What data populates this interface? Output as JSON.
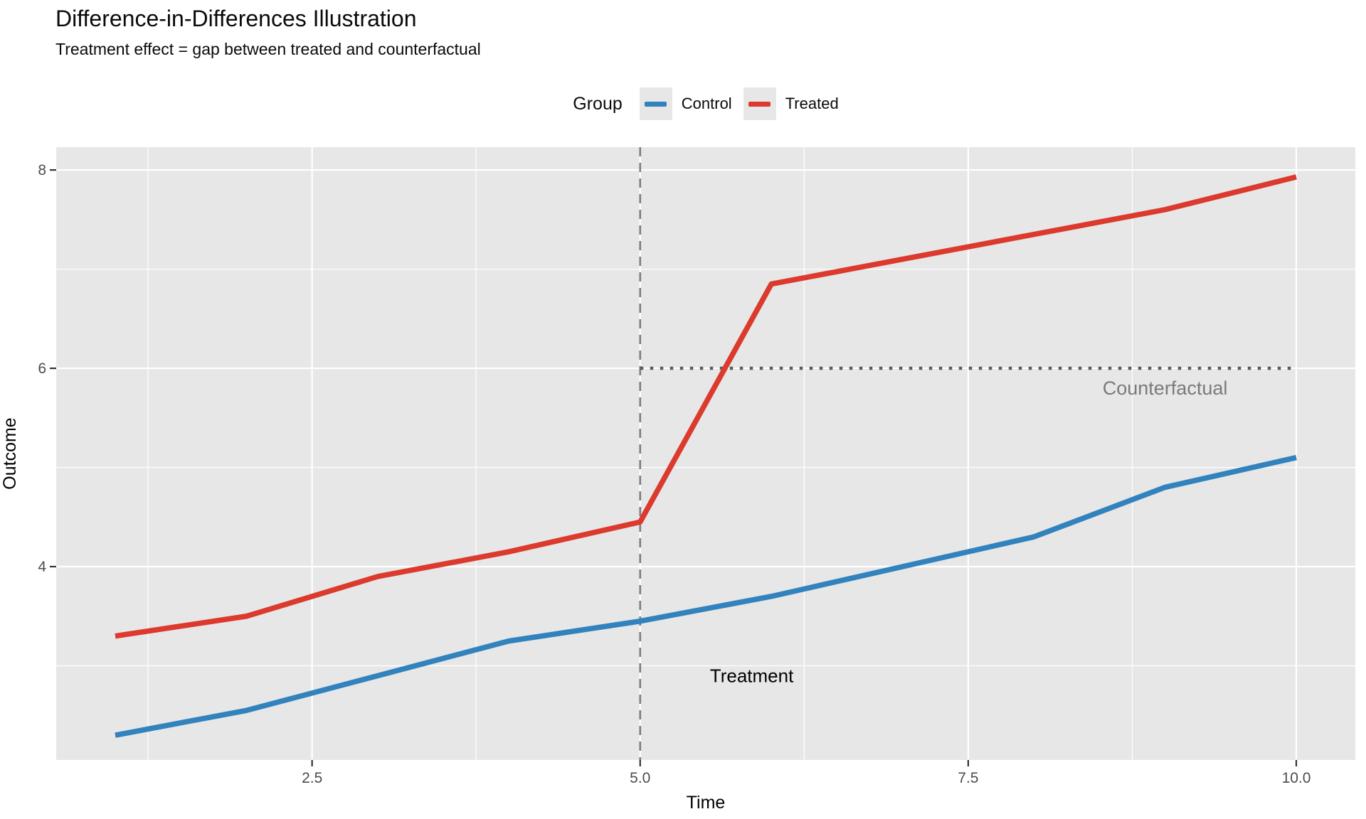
{
  "header": {
    "title": "Difference-in-Differences Illustration",
    "subtitle": "Treatment effect = gap between treated and counterfactual"
  },
  "legend": {
    "title": "Group",
    "key_bg": "#E7E7E7",
    "items": [
      {
        "label": "Control",
        "color": "#3182BD"
      },
      {
        "label": "Treated",
        "color": "#DB3A2D"
      }
    ]
  },
  "chart_data": {
    "type": "line",
    "title": "Difference-in-Differences Illustration",
    "subtitle": "Treatment effect = gap between treated and counterfactual",
    "xlabel": "Time",
    "ylabel": "Outcome",
    "x": [
      1,
      2,
      3,
      4,
      5,
      6,
      7,
      8,
      9,
      10
    ],
    "series": [
      {
        "name": "Control",
        "color": "#3182BD",
        "values": [
          2.3,
          2.55,
          2.9,
          3.25,
          3.45,
          3.7,
          4.0,
          4.3,
          4.8,
          5.1
        ]
      },
      {
        "name": "Treated",
        "color": "#DB3A2D",
        "values": [
          3.3,
          3.5,
          3.9,
          4.15,
          4.45,
          6.85,
          7.1,
          7.35,
          7.6,
          7.93
        ]
      }
    ],
    "reference_lines": {
      "treatment_time": {
        "x": 5,
        "style": "dashed",
        "color": "#7E7E7E"
      },
      "counterfactual": {
        "y": 6,
        "x_start": 5,
        "x_end": 10,
        "style": "dotted",
        "color": "#5C5C5C"
      }
    },
    "annotations": [
      {
        "text": "Treatment",
        "x": 5.85,
        "y": 2.9,
        "color": "#000000",
        "size": 26
      },
      {
        "text": "Counterfactual",
        "x": 9.0,
        "y": 5.8,
        "color": "#7A7A7A",
        "size": 27
      }
    ],
    "x_ticks": {
      "values": [
        2.5,
        5,
        7.5,
        10
      ],
      "labels": [
        "2.5",
        "5.0",
        "7.5",
        "10.0"
      ]
    },
    "y_ticks": {
      "values": [
        4,
        6,
        8
      ],
      "labels": [
        "4",
        "6",
        "8"
      ]
    },
    "x_minor": [
      1.25,
      3.75,
      6.25,
      8.75
    ],
    "y_minor": [
      3,
      5,
      7
    ],
    "xlim": [
      0.55,
      10.45
    ],
    "ylim": [
      2.05,
      8.23
    ],
    "grid": true,
    "legend_position": "top-center",
    "colors": {
      "panel_bg": "#E7E7E7",
      "grid": "#FFFFFF",
      "tick": "#333333",
      "tick_label": "#4D4D4D",
      "axis_title": "#000000"
    }
  }
}
